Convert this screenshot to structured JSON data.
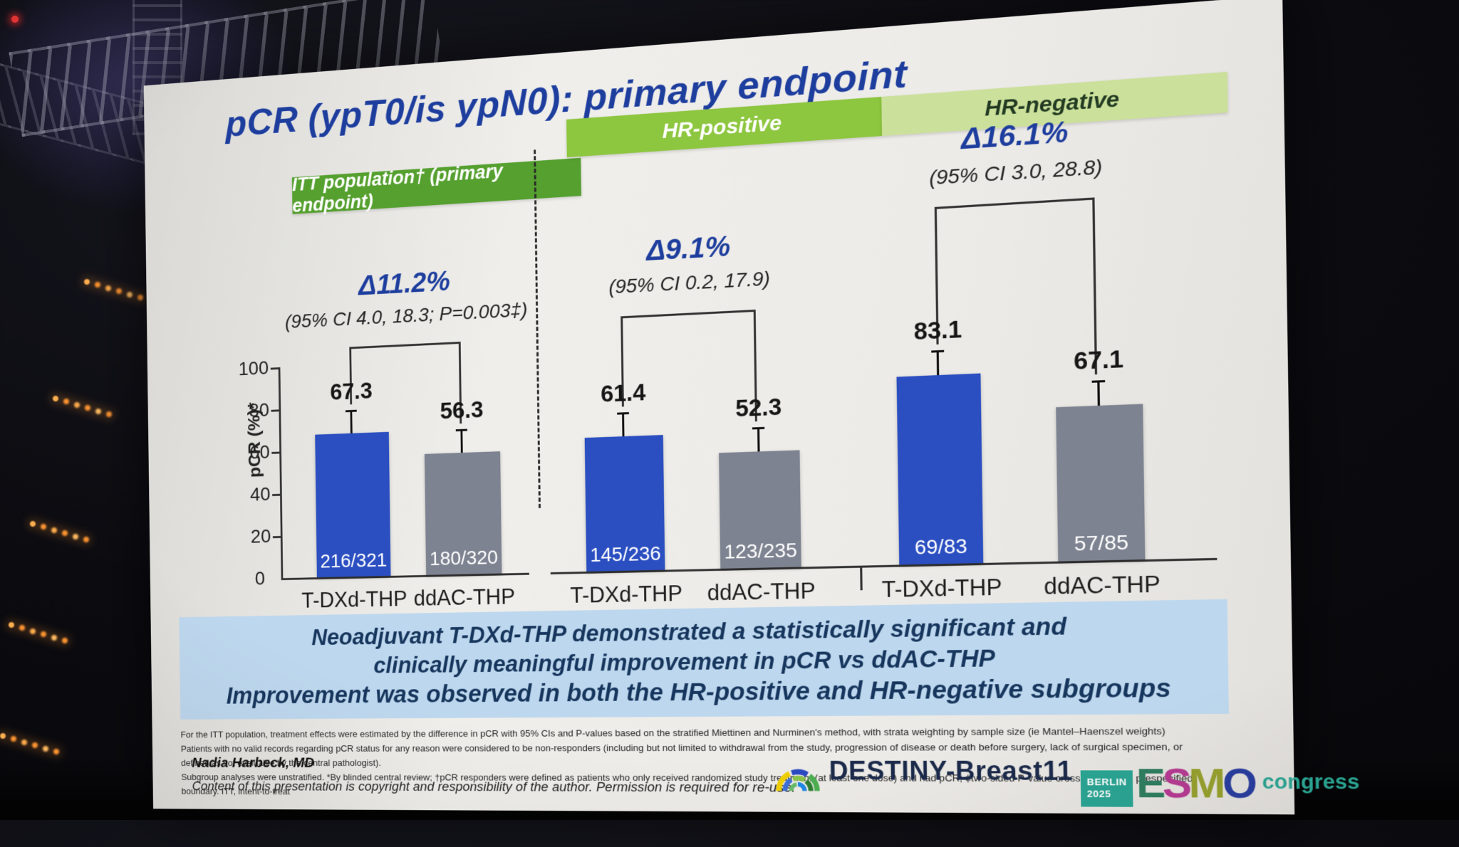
{
  "slide": {
    "title": "pCR (ypT0/is ypN0): primary endpoint",
    "summary": {
      "line1": "Neoadjuvant T-DXd-THP demonstrated a statistically significant and",
      "line2": "clinically meaningful improvement in pCR vs ddAC-THP",
      "line3": "Improvement was observed in both the HR-positive and HR-negative subgroups"
    },
    "footnotes": [
      "For the ITT population, treatment effects were estimated by the difference in pCR with 95% CIs and P-values based on the stratified Miettinen and Nurminen's method, with strata weighting by sample size (ie Mantel–Haenszel weights)",
      "Patients with no valid records regarding pCR status for any reason were considered to be non-responders (including but not limited to withdrawal from the study, progression of disease or death before surgery, lack of surgical specimen, or defined as not evaluable by the central pathologist).",
      "Subgroup analyses were unstratified. *By blinded central review; †pCR responders were defined as patients who only received randomized study treatment (at least one dose) and had pCR; ‡two-sided P-value crossed the 0.03 prespecified boundary. ITT, intent-to-treat"
    ],
    "author": "Nadia Harbeck, MD",
    "copyright": "Content of this presentation is copyright and responsibility of the author. Permission is required for re-use.",
    "trial_logo_text": "DESTINY-Breast11",
    "congress_logo": {
      "city": "BERLIN",
      "year": "2025",
      "org_letters": [
        "E",
        "S",
        "M",
        "O"
      ],
      "label": "congress"
    }
  },
  "chart_data": {
    "type": "bar",
    "ylabel": "pCR (%)*",
    "ylim": [
      0,
      100
    ],
    "yticks": [
      0,
      20,
      40,
      60,
      80,
      100
    ],
    "grid": false,
    "bar_colors": {
      "T-DXd-THP": "#2b4fc1",
      "ddAC-THP": "#7e8391"
    },
    "panels": [
      {
        "banner": "ITT population† (primary endpoint)",
        "banner_color": "#55a02f",
        "delta": "Δ11.2%",
        "ci": "(95% CI 4.0, 18.3; P=0.003‡)",
        "categories": [
          "T-DXd-THP",
          "ddAC-THP"
        ],
        "values": [
          67.3,
          56.3
        ],
        "fractions": [
          "216/321",
          "180/320"
        ]
      },
      {
        "banner": "HR-positive",
        "banner_color": "#8dc63f",
        "delta": "Δ9.1%",
        "ci": "(95% CI 0.2, 17.9)",
        "categories": [
          "T-DXd-THP",
          "ddAC-THP"
        ],
        "values": [
          61.4,
          52.3
        ],
        "fractions": [
          "145/236",
          "123/235"
        ]
      },
      {
        "banner": "HR-negative",
        "banner_color": "#cbe09b",
        "delta": "Δ16.1%",
        "ci": "(95% CI 3.0, 28.8)",
        "categories": [
          "T-DXd-THP",
          "ddAC-THP"
        ],
        "values": [
          83.1,
          67.1
        ],
        "fractions": [
          "69/83",
          "57/85"
        ]
      }
    ]
  }
}
